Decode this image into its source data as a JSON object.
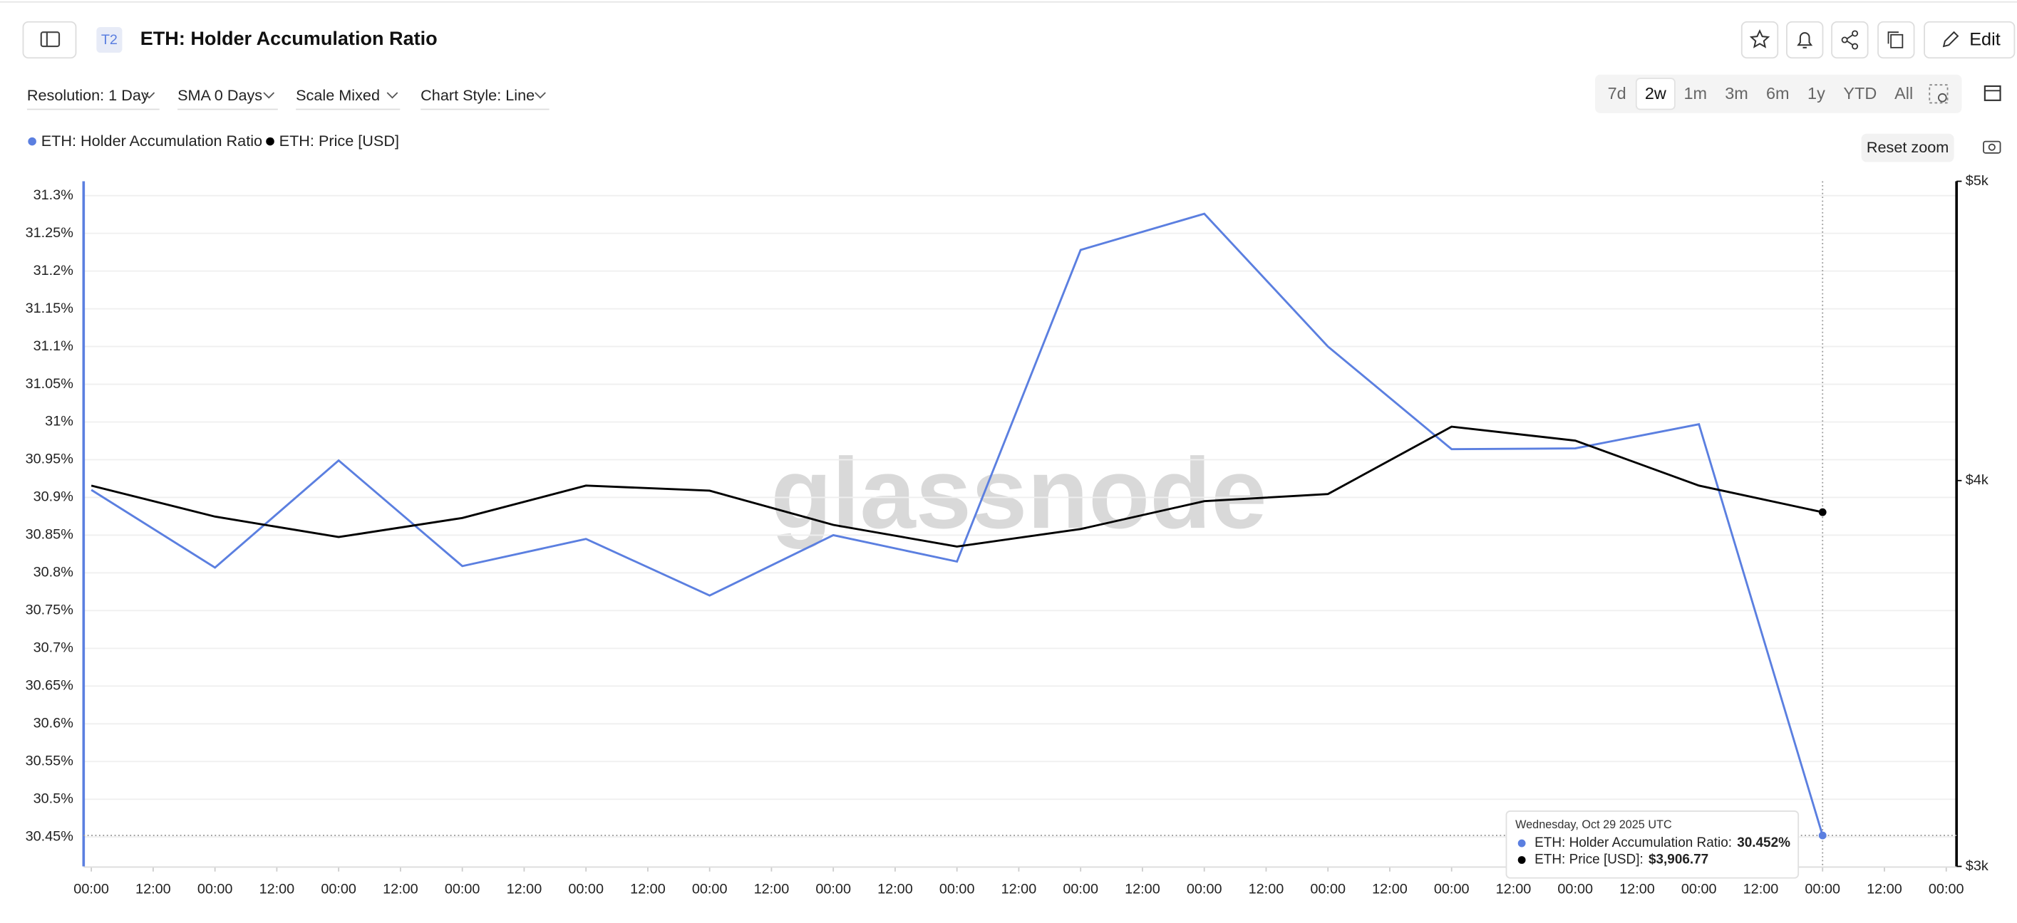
{
  "header": {
    "badge": "T2",
    "edit": "Edit"
  },
  "controls": {
    "resolution": "Resolution: 1 Day",
    "sma": "SMA 0 Days",
    "scale": "Scale Mixed",
    "style": "Chart Style: Line",
    "ranges": [
      "7d",
      "2w",
      "1m",
      "3m",
      "6m",
      "1y",
      "YTD",
      "All"
    ],
    "selected_range": "2w",
    "reset": "Reset zoom"
  },
  "chart_data": {
    "type": "line",
    "title": "ETH: Holder Accumulation Ratio",
    "watermark": "glassnode",
    "x": [
      0,
      24,
      48,
      72,
      96,
      120,
      144,
      168,
      192,
      216,
      240,
      264,
      288,
      312,
      336
    ],
    "xlim": [
      0,
      360
    ],
    "xticks": [
      {
        "value": 0,
        "label": "00:00"
      },
      {
        "value": 12,
        "label": "12:00"
      },
      {
        "value": 24,
        "label": "00:00"
      },
      {
        "value": 36,
        "label": "12:00"
      },
      {
        "value": 48,
        "label": "00:00"
      },
      {
        "value": 60,
        "label": "12:00"
      },
      {
        "value": 72,
        "label": "00:00"
      },
      {
        "value": 84,
        "label": "12:00"
      },
      {
        "value": 96,
        "label": "00:00"
      },
      {
        "value": 108,
        "label": "12:00"
      },
      {
        "value": 120,
        "label": "00:00"
      },
      {
        "value": 132,
        "label": "12:00"
      },
      {
        "value": 144,
        "label": "00:00"
      },
      {
        "value": 156,
        "label": "12:00"
      },
      {
        "value": 168,
        "label": "00:00"
      },
      {
        "value": 180,
        "label": "12:00"
      },
      {
        "value": 192,
        "label": "00:00"
      },
      {
        "value": 204,
        "label": "12:00"
      },
      {
        "value": 216,
        "label": "00:00"
      },
      {
        "value": 228,
        "label": "12:00"
      },
      {
        "value": 240,
        "label": "00:00"
      },
      {
        "value": 252,
        "label": "12:00"
      },
      {
        "value": 264,
        "label": "00:00"
      },
      {
        "value": 276,
        "label": "12:00"
      },
      {
        "value": 288,
        "label": "00:00"
      },
      {
        "value": 300,
        "label": "12:00"
      },
      {
        "value": 312,
        "label": "00:00"
      },
      {
        "value": 324,
        "label": "12:00"
      },
      {
        "value": 336,
        "label": "00:00"
      },
      {
        "value": 348,
        "label": "12:00"
      },
      {
        "value": 360,
        "label": "00:00"
      }
    ],
    "ylim": [
      30.411,
      31.319
    ],
    "yticks": [
      {
        "value": 30.45,
        "label": "30.45%"
      },
      {
        "value": 30.5,
        "label": "30.5%"
      },
      {
        "value": 30.55,
        "label": "30.55%"
      },
      {
        "value": 30.6,
        "label": "30.6%"
      },
      {
        "value": 30.65,
        "label": "30.65%"
      },
      {
        "value": 30.7,
        "label": "30.7%"
      },
      {
        "value": 30.75,
        "label": "30.75%"
      },
      {
        "value": 30.8,
        "label": "30.8%"
      },
      {
        "value": 30.85,
        "label": "30.85%"
      },
      {
        "value": 30.9,
        "label": "30.9%"
      },
      {
        "value": 30.95,
        "label": "30.95%"
      },
      {
        "value": 31,
        "label": "31%"
      },
      {
        "value": 31.05,
        "label": "31.05%"
      },
      {
        "value": 31.1,
        "label": "31.1%"
      },
      {
        "value": 31.15,
        "label": "31.15%"
      },
      {
        "value": 31.2,
        "label": "31.2%"
      },
      {
        "value": 31.25,
        "label": "31.25%"
      },
      {
        "value": 31.3,
        "label": "31.3%"
      }
    ],
    "y2lim": [
      3000,
      5000
    ],
    "y2log": true,
    "y2ticks": [
      {
        "value": 3000,
        "label": "$3k"
      },
      {
        "value": 4000,
        "label": "$4k"
      },
      {
        "value": 5000,
        "label": "$5k"
      }
    ],
    "grid": true,
    "series": [
      {
        "name": "ETH: Holder Accumulation Ratio",
        "color": "#5b7fe0",
        "axis": "y",
        "values": [
          30.91,
          30.807,
          30.949,
          30.809,
          30.845,
          30.77,
          30.85,
          30.815,
          31.228,
          31.276,
          31.1,
          30.964,
          30.965,
          30.997,
          30.452
        ]
      },
      {
        "name": "ETH: Price [USD]",
        "color": "#000000",
        "axis": "y2",
        "values": [
          3985,
          3894,
          3835,
          3890,
          3985,
          3970,
          3870,
          3808,
          3858,
          3939,
          3960,
          4164,
          4121,
          3985,
          3906.77
        ]
      }
    ],
    "tooltip": {
      "date": "Wednesday, Oct 29 2025 UTC",
      "rows": [
        {
          "label": "ETH: Holder Accumulation Ratio:",
          "value": "30.452%"
        },
        {
          "label": "ETH: Price [USD]:",
          "value": "$3,906.77"
        }
      ]
    }
  }
}
